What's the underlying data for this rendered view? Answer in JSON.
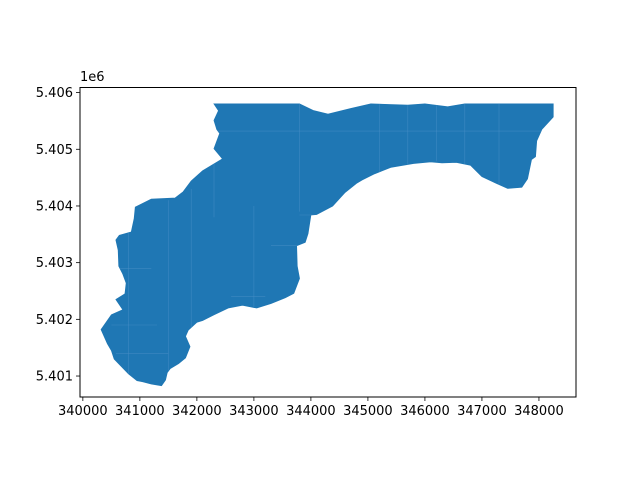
{
  "chart_data": {
    "type": "map",
    "title": "",
    "xlabel": "",
    "ylabel": "",
    "xlim": [
      339950,
      348650
    ],
    "ylim": [
      5400630,
      5406090
    ],
    "x_ticks": [
      340000,
      341000,
      342000,
      343000,
      344000,
      345000,
      346000,
      347000,
      348000
    ],
    "x_tick_labels": [
      "340000",
      "341000",
      "342000",
      "343000",
      "344000",
      "345000",
      "346000",
      "347000",
      "348000"
    ],
    "y_ticks": [
      5401000,
      5402000,
      5403000,
      5404000,
      5405000,
      5406000
    ],
    "y_tick_labels": [
      "5.401",
      "5.402",
      "5.403",
      "5.404",
      "5.405",
      "5.406"
    ],
    "y_offset_label": "1e6",
    "grid": false,
    "legend": "none",
    "fill_color": "#1f77b4",
    "edge_color": "#4a90c8",
    "outline": [
      [
        342300,
        5405800
      ],
      [
        343800,
        5405800
      ],
      [
        344050,
        5405680
      ],
      [
        344300,
        5405620
      ],
      [
        344700,
        5405720
      ],
      [
        345050,
        5405800
      ],
      [
        345700,
        5405780
      ],
      [
        346000,
        5405800
      ],
      [
        346400,
        5405750
      ],
      [
        346700,
        5405800
      ],
      [
        347300,
        5405800
      ],
      [
        348250,
        5405800
      ],
      [
        348250,
        5405570
      ],
      [
        348050,
        5405350
      ],
      [
        347960,
        5405150
      ],
      [
        347940,
        5404870
      ],
      [
        347870,
        5404820
      ],
      [
        347800,
        5404480
      ],
      [
        347700,
        5404330
      ],
      [
        347450,
        5404310
      ],
      [
        347250,
        5404400
      ],
      [
        347000,
        5404520
      ],
      [
        346800,
        5404720
      ],
      [
        346550,
        5404770
      ],
      [
        346300,
        5404760
      ],
      [
        346100,
        5404780
      ],
      [
        345800,
        5404750
      ],
      [
        345400,
        5404680
      ],
      [
        345120,
        5404570
      ],
      [
        344900,
        5404460
      ],
      [
        344800,
        5404400
      ],
      [
        344600,
        5404240
      ],
      [
        344380,
        5404000
      ],
      [
        344100,
        5403850
      ],
      [
        344000,
        5403840
      ],
      [
        343950,
        5403510
      ],
      [
        343900,
        5403360
      ],
      [
        343750,
        5403300
      ],
      [
        343760,
        5402940
      ],
      [
        343800,
        5402720
      ],
      [
        343700,
        5402460
      ],
      [
        343550,
        5402380
      ],
      [
        343300,
        5402280
      ],
      [
        343050,
        5402200
      ],
      [
        342800,
        5402250
      ],
      [
        342550,
        5402200
      ],
      [
        342300,
        5402080
      ],
      [
        342100,
        5401980
      ],
      [
        342000,
        5401950
      ],
      [
        341850,
        5401810
      ],
      [
        341800,
        5401700
      ],
      [
        341880,
        5401520
      ],
      [
        341800,
        5401320
      ],
      [
        341680,
        5401220
      ],
      [
        341530,
        5401130
      ],
      [
        341480,
        5401060
      ],
      [
        341450,
        5400930
      ],
      [
        341380,
        5400830
      ],
      [
        341200,
        5400860
      ],
      [
        341050,
        5400900
      ],
      [
        340950,
        5400920
      ],
      [
        340800,
        5401040
      ],
      [
        340550,
        5401300
      ],
      [
        340500,
        5401450
      ],
      [
        340430,
        5401570
      ],
      [
        340320,
        5401820
      ],
      [
        340500,
        5402080
      ],
      [
        340700,
        5402170
      ],
      [
        340580,
        5402350
      ],
      [
        340740,
        5402450
      ],
      [
        340760,
        5402640
      ],
      [
        340700,
        5402800
      ],
      [
        340630,
        5402940
      ],
      [
        340620,
        5403220
      ],
      [
        340580,
        5403400
      ],
      [
        340640,
        5403480
      ],
      [
        340850,
        5403540
      ],
      [
        340900,
        5403780
      ],
      [
        340920,
        5403980
      ],
      [
        341200,
        5404120
      ],
      [
        341620,
        5404140
      ],
      [
        341760,
        5404250
      ],
      [
        341900,
        5404440
      ],
      [
        342100,
        5404620
      ],
      [
        342450,
        5404830
      ],
      [
        342300,
        5405010
      ],
      [
        342400,
        5405280
      ],
      [
        342350,
        5405350
      ],
      [
        342300,
        5405510
      ],
      [
        342380,
        5405680
      ],
      [
        342300,
        5405800
      ]
    ],
    "inner_boundaries": [
      [
        [
          342300,
          5405800
        ],
        [
          342300,
          5403800
        ]
      ],
      [
        [
          342300,
          5405320
        ],
        [
          344200,
          5405320
        ]
      ],
      [
        [
          344200,
          5405320
        ],
        [
          348250,
          5405320
        ]
      ],
      [
        [
          343800,
          5405800
        ],
        [
          343800,
          5403900
        ]
      ],
      [
        [
          345200,
          5405800
        ],
        [
          345200,
          5404550
        ]
      ],
      [
        [
          345700,
          5405780
        ],
        [
          345700,
          5404700
        ]
      ],
      [
        [
          346200,
          5405800
        ],
        [
          346200,
          5404790
        ]
      ],
      [
        [
          346700,
          5405800
        ],
        [
          346700,
          5404600
        ]
      ],
      [
        [
          347300,
          5405800
        ],
        [
          347300,
          5404320
        ]
      ],
      [
        [
          343000,
          5404000
        ],
        [
          343000,
          5402220
        ]
      ],
      [
        [
          341900,
          5404300
        ],
        [
          341900,
          5401820
        ]
      ],
      [
        [
          343800,
          5403840
        ],
        [
          344380,
          5403840
        ]
      ],
      [
        [
          343300,
          5403300
        ],
        [
          343900,
          5403300
        ]
      ],
      [
        [
          340800,
          5403800
        ],
        [
          340800,
          5401000
        ]
      ],
      [
        [
          341500,
          5404100
        ],
        [
          341500,
          5401100
        ]
      ],
      [
        [
          340650,
          5402900
        ],
        [
          341200,
          5402900
        ]
      ],
      [
        [
          340500,
          5401900
        ],
        [
          341300,
          5401900
        ]
      ],
      [
        [
          340580,
          5401400
        ],
        [
          341500,
          5401400
        ]
      ],
      [
        [
          342600,
          5402400
        ],
        [
          343200,
          5402400
        ]
      ]
    ]
  }
}
